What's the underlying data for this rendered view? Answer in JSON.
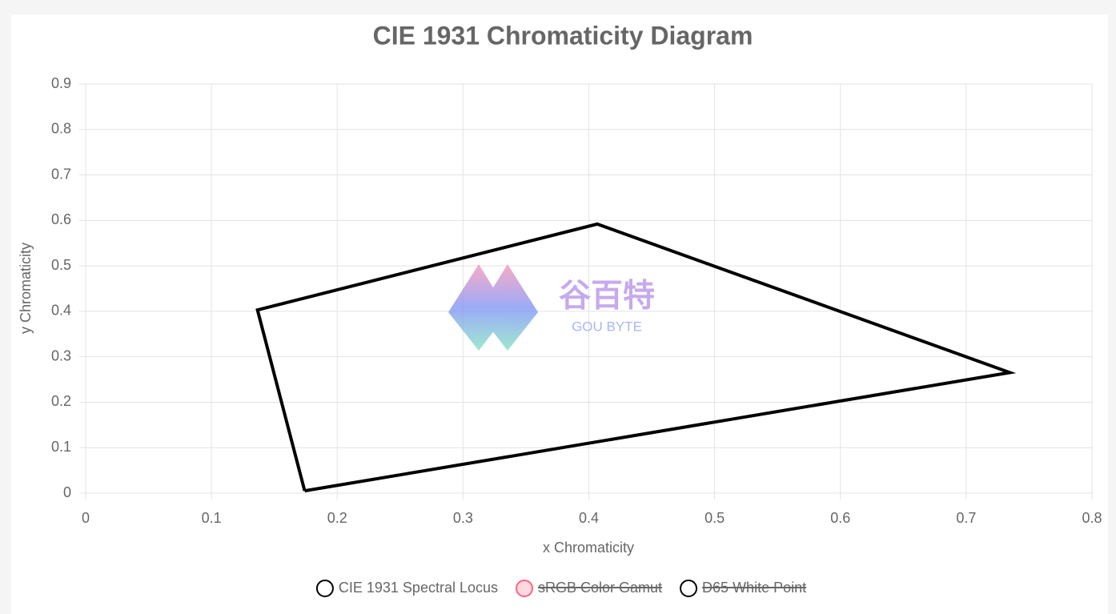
{
  "chart_data": {
    "type": "line",
    "title": "CIE 1931 Chromaticity Diagram",
    "x_label": "x Chromaticity",
    "y_label": "y Chromaticity",
    "xlim": [
      0,
      0.8
    ],
    "ylim": [
      0,
      0.9
    ],
    "xticks": [
      0,
      0.1,
      0.2,
      0.3,
      0.4,
      0.5,
      0.6,
      0.7,
      0.8
    ],
    "yticks": [
      0,
      0.1,
      0.2,
      0.3,
      0.4,
      0.5,
      0.6,
      0.7,
      0.8,
      0.9
    ],
    "grid": true,
    "series": [
      {
        "name": "CIE 1931 Spectral Locus",
        "color": "#000000",
        "hidden": false,
        "x": [
          0.1741,
          0.1366,
          0.4067,
          0.7347,
          0.1741
        ],
        "values": [
          0.005,
          0.403,
          0.592,
          0.2653,
          0.005
        ]
      },
      {
        "name": "sRGB Color Gamut",
        "color": "#ff6384",
        "hidden": true
      },
      {
        "name": "D65 White Point",
        "color": "#000000",
        "hidden": true
      }
    ],
    "watermark": {
      "text": "谷百特",
      "subtext": "GOU BYTE"
    }
  }
}
